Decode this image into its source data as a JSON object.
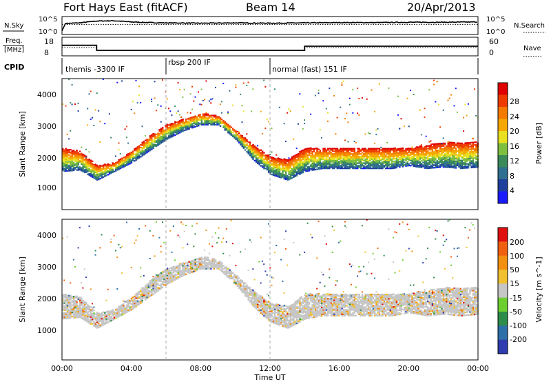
{
  "header": {
    "station": "Fort Hays East (fitACF)",
    "beam": "Beam 14",
    "date": "20/Apr/2013"
  },
  "aux_labels": {
    "nsky": "N.Sky",
    "nsearch": "N.Search",
    "freq_line1": "Freq.",
    "freq_line2": "[MHz]",
    "nave": "Nave",
    "cpid": "CPID"
  },
  "noise_ticks_left": [
    "10^5",
    "10^0"
  ],
  "noise_ticks_right": [
    "10^5",
    "10^0"
  ],
  "freq_ticks": [
    "18",
    "8"
  ],
  "nave_ticks": [
    "60",
    "0"
  ],
  "modes": [
    {
      "start": 0,
      "end": 6,
      "name": "themis -3300 IF"
    },
    {
      "start": 6,
      "end": 12,
      "name": "rbsp 200 IF"
    },
    {
      "start": 12,
      "end": 24,
      "name": "normal (fast) 151 IF"
    }
  ],
  "range_ticks": [
    "1000",
    "2000",
    "3000",
    "4000"
  ],
  "range_label": "Slant Range [km]",
  "time_ticks": [
    "00:00",
    "04:00",
    "08:00",
    "12:00",
    "16:00",
    "20:00",
    "00:00"
  ],
  "time_label": "Time UT",
  "power_colorbar": {
    "label": "Power [dB]",
    "ticks": [
      "4",
      "8",
      "12",
      "16",
      "20",
      "24",
      "28"
    ],
    "colors": [
      "#1a1aff",
      "#1f3f9f",
      "#2f6f8f",
      "#3a8a5a",
      "#7fbf3f",
      "#e8e020",
      "#f6a800",
      "#f47a00",
      "#ee3c00",
      "#e00000"
    ]
  },
  "velocity_colorbar": {
    "label": "Velocity [m s^-1]",
    "ticks": [
      "200",
      "100",
      "50",
      "15",
      "-15",
      "-50",
      "-100",
      "-200"
    ],
    "colors": [
      "#2e3cb0",
      "#2d6fa8",
      "#2e8c4a",
      "#6ccf2f",
      "#c6c6c6",
      "#f0c030",
      "#f39010",
      "#f06010",
      "#e01010"
    ]
  },
  "chart_data": [
    {
      "type": "line",
      "title": "N.Sky / N.Search",
      "x_unit": "UT hours",
      "xlim": [
        0,
        24
      ],
      "series": [
        {
          "name": "N.Sky",
          "x": [
            0,
            0.2,
            1,
            2,
            3,
            4,
            5,
            6,
            8,
            10,
            12,
            14,
            16,
            18,
            20,
            22,
            24
          ],
          "values": [
            1,
            3.4,
            3.6,
            4.2,
            4.3,
            3.9,
            3.7,
            3.6,
            3.5,
            3.6,
            3.5,
            3.6,
            3.7,
            3.7,
            3.8,
            3.8,
            3.9
          ]
        },
        {
          "name": "N.Search",
          "x": [
            0,
            24
          ],
          "values": [
            3.1,
            3.1
          ]
        }
      ]
    },
    {
      "type": "line",
      "title": "Freq. [MHz] / Nave",
      "x_unit": "UT hours",
      "xlim": [
        0,
        24
      ],
      "ylim_freq": [
        8,
        18
      ],
      "ylim_nave": [
        0,
        60
      ],
      "series": [
        {
          "name": "Freq.",
          "x": [
            0,
            2,
            2,
            14,
            14,
            24
          ],
          "values": [
            14.5,
            14.5,
            11.2,
            11.2,
            13.9,
            13.9
          ]
        },
        {
          "name": "Nave",
          "x": [
            0,
            2,
            2,
            14,
            14,
            24
          ],
          "values": [
            30,
            30,
            18,
            18,
            30,
            30
          ]
        }
      ]
    },
    {
      "type": "heatmap",
      "title": "Power [dB]",
      "x_unit": "UT hours",
      "y_unit": "km",
      "xlim": [
        0,
        24
      ],
      "ylim": [
        0,
        4500
      ],
      "features": [
        {
          "name": "main band lower edge",
          "x": [
            0,
            1,
            2,
            3,
            4,
            5,
            6,
            7,
            8,
            9,
            10,
            11,
            12,
            13,
            14,
            15,
            16,
            17,
            18,
            19,
            20,
            21,
            22,
            23,
            24
          ],
          "values": [
            1300,
            1350,
            1000,
            1300,
            1600,
            2000,
            2400,
            2700,
            2900,
            2900,
            2400,
            1700,
            1200,
            1000,
            1300,
            1400,
            1400,
            1400,
            1400,
            1400,
            1500,
            1400,
            1450,
            1400,
            1450
          ]
        },
        {
          "name": "main band upper edge",
          "x": [
            0,
            1,
            2,
            3,
            4,
            5,
            6,
            7,
            8,
            9,
            10,
            11,
            12,
            13,
            14,
            15,
            16,
            17,
            18,
            19,
            20,
            21,
            22,
            23,
            24
          ],
          "values": [
            2100,
            2000,
            1500,
            1600,
            2000,
            2500,
            2900,
            3100,
            3300,
            3200,
            2700,
            2200,
            1800,
            1700,
            2100,
            2100,
            2100,
            2100,
            2100,
            2100,
            2100,
            2200,
            2300,
            2300,
            2300
          ]
        }
      ]
    },
    {
      "type": "heatmap",
      "title": "Velocity [m s^-1]",
      "x_unit": "UT hours",
      "y_unit": "km",
      "xlim": [
        0,
        24
      ],
      "ylim": [
        0,
        4500
      ],
      "features": [
        {
          "name": "main band lower edge",
          "x": [
            0,
            1,
            2,
            3,
            4,
            5,
            6,
            7,
            8,
            9,
            10,
            11,
            12,
            13,
            14,
            15,
            16,
            17,
            18,
            19,
            20,
            21,
            22,
            23,
            24
          ],
          "values": [
            1300,
            1350,
            1000,
            1300,
            1600,
            2000,
            2400,
            2700,
            2900,
            2900,
            2400,
            1700,
            1200,
            1000,
            1300,
            1400,
            1400,
            1400,
            1400,
            1400,
            1500,
            1400,
            1450,
            1400,
            1450
          ]
        },
        {
          "name": "main band upper edge",
          "x": [
            0,
            1,
            2,
            3,
            4,
            5,
            6,
            7,
            8,
            9,
            10,
            11,
            12,
            13,
            14,
            15,
            16,
            17,
            18,
            19,
            20,
            21,
            22,
            23,
            24
          ],
          "values": [
            2100,
            2000,
            1500,
            1600,
            2000,
            2500,
            2900,
            3100,
            3300,
            3200,
            2700,
            2200,
            1800,
            1700,
            2100,
            2100,
            2100,
            2100,
            2100,
            2100,
            2100,
            2200,
            2300,
            2300,
            2300
          ]
        }
      ]
    }
  ]
}
